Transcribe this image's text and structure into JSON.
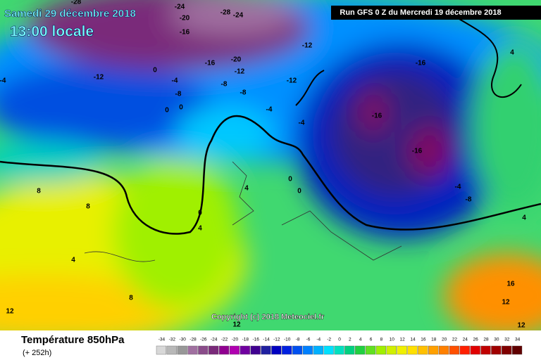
{
  "header": {
    "date": "Samedi 29 décembre 2018",
    "time": "13:00 locale",
    "run": "Run GFS 0 Z du Mercredi 19 décembre 2018"
  },
  "copyright": "Copyright (c) 2018 Meteociel.fr",
  "footer": {
    "title": "Température 850hPa",
    "lead": "(+ 252h)"
  },
  "legend": {
    "ticks": [
      -34,
      -32,
      -30,
      -28,
      -26,
      -24,
      -22,
      -20,
      -18,
      -16,
      -14,
      -12,
      -10,
      -8,
      -6,
      -4,
      -2,
      0,
      2,
      4,
      6,
      8,
      10,
      12,
      14,
      16,
      18,
      20,
      22,
      24,
      26,
      28,
      30,
      32,
      34
    ],
    "colors": [
      "#d8d8d8",
      "#b8b8b8",
      "#989898",
      "#a070a0",
      "#8a4c8a",
      "#7a2a7a",
      "#900090",
      "#b000b0",
      "#7000a0",
      "#400090",
      "#2020a0",
      "#0000c0",
      "#0020e0",
      "#0050f0",
      "#0080ff",
      "#00b0ff",
      "#00e0ff",
      "#00e0c0",
      "#00d080",
      "#20d040",
      "#60e020",
      "#a0f000",
      "#d0f000",
      "#f0f000",
      "#ffe000",
      "#ffc000",
      "#ffa000",
      "#ff8000",
      "#ff5000",
      "#ff2000",
      "#e00000",
      "#c00000",
      "#a00000",
      "#800000",
      "#600000"
    ]
  },
  "contour_labels": [
    "-28",
    "-24",
    "-20",
    "-28",
    "-24",
    "-16",
    "-12",
    "-12",
    "-16",
    "-20",
    "-12",
    "-8",
    "-8",
    "-4",
    "0",
    "0",
    "-4",
    "-12",
    "-16",
    "-16",
    "-16",
    "-4",
    "0",
    "-4",
    "-8",
    "0",
    "-8",
    "4",
    "8",
    "8",
    "4",
    "0",
    "4",
    "8",
    "12",
    "12",
    "12",
    "16",
    "12",
    "4",
    "-4",
    "0",
    "4"
  ]
}
